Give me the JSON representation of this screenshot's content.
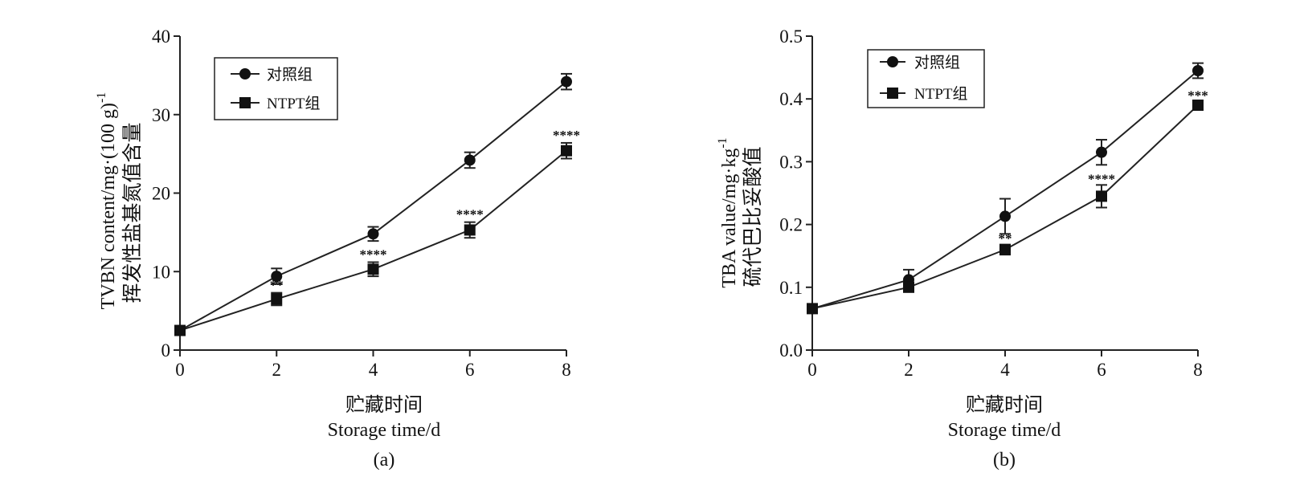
{
  "chart_data": [
    {
      "type": "line",
      "panel_label": "(a)",
      "ylabel_cn": "挥发性盐基氮值含量",
      "ylabel_en": "TVBN  content/mg·(100 g)",
      "ylabel_sup": "-1",
      "xlabel_cn": "贮藏时间",
      "xlabel_en": "Storage  time/d",
      "xlim": [
        0,
        8
      ],
      "ylim": [
        0,
        40
      ],
      "xticks": [
        0,
        2,
        4,
        6,
        8
      ],
      "yticks": [
        0,
        10,
        20,
        30,
        40
      ],
      "ytick_labels": [
        "0",
        "10",
        "20",
        "30",
        "40"
      ],
      "x": [
        0,
        2,
        4,
        6,
        8
      ],
      "series": [
        {
          "name": "对照组",
          "marker": "circle",
          "values": [
            2.5,
            9.4,
            14.8,
            24.2,
            34.2
          ],
          "errors": [
            0.3,
            1.0,
            0.9,
            1.0,
            1.0
          ]
        },
        {
          "name": "NTPT组",
          "marker": "square",
          "values": [
            2.5,
            6.5,
            10.3,
            15.3,
            25.4
          ],
          "errors": [
            0.3,
            0.8,
            0.9,
            1.0,
            1.0
          ]
        }
      ],
      "significance": [
        {
          "x": 2,
          "label": "**"
        },
        {
          "x": 4,
          "label": "****"
        },
        {
          "x": 6,
          "label": "****"
        },
        {
          "x": 8,
          "label": "****"
        }
      ],
      "legend_position": "top-left"
    },
    {
      "type": "line",
      "panel_label": "(b)",
      "ylabel_cn": "硫代巴比妥酸值",
      "ylabel_en": "TBA  value/mg·kg",
      "ylabel_sup": "-1",
      "xlabel_cn": "贮藏时间",
      "xlabel_en": "Storage  time/d",
      "xlim": [
        0,
        8
      ],
      "ylim": [
        0,
        0.5
      ],
      "xticks": [
        0,
        2,
        4,
        6,
        8
      ],
      "yticks": [
        0,
        0.1,
        0.2,
        0.3,
        0.4,
        0.5
      ],
      "ytick_labels": [
        "0.0",
        "0.1",
        "0.2",
        "0.3",
        "0.4",
        "0.5"
      ],
      "x": [
        0,
        2,
        4,
        6,
        8
      ],
      "series": [
        {
          "name": "对照组",
          "marker": "circle",
          "values": [
            0.066,
            0.112,
            0.213,
            0.315,
            0.445
          ],
          "errors": [
            0.005,
            0.016,
            0.028,
            0.02,
            0.012
          ]
        },
        {
          "name": "NTPT组",
          "marker": "square",
          "values": [
            0.066,
            0.1,
            0.16,
            0.245,
            0.39
          ],
          "errors": [
            0.005,
            0.006,
            0.008,
            0.018,
            0.006
          ]
        }
      ],
      "significance": [
        {
          "x": 4,
          "label": "**"
        },
        {
          "x": 6,
          "label": "****"
        },
        {
          "x": 8,
          "label": "***"
        }
      ],
      "legend_position": "top-left"
    }
  ]
}
